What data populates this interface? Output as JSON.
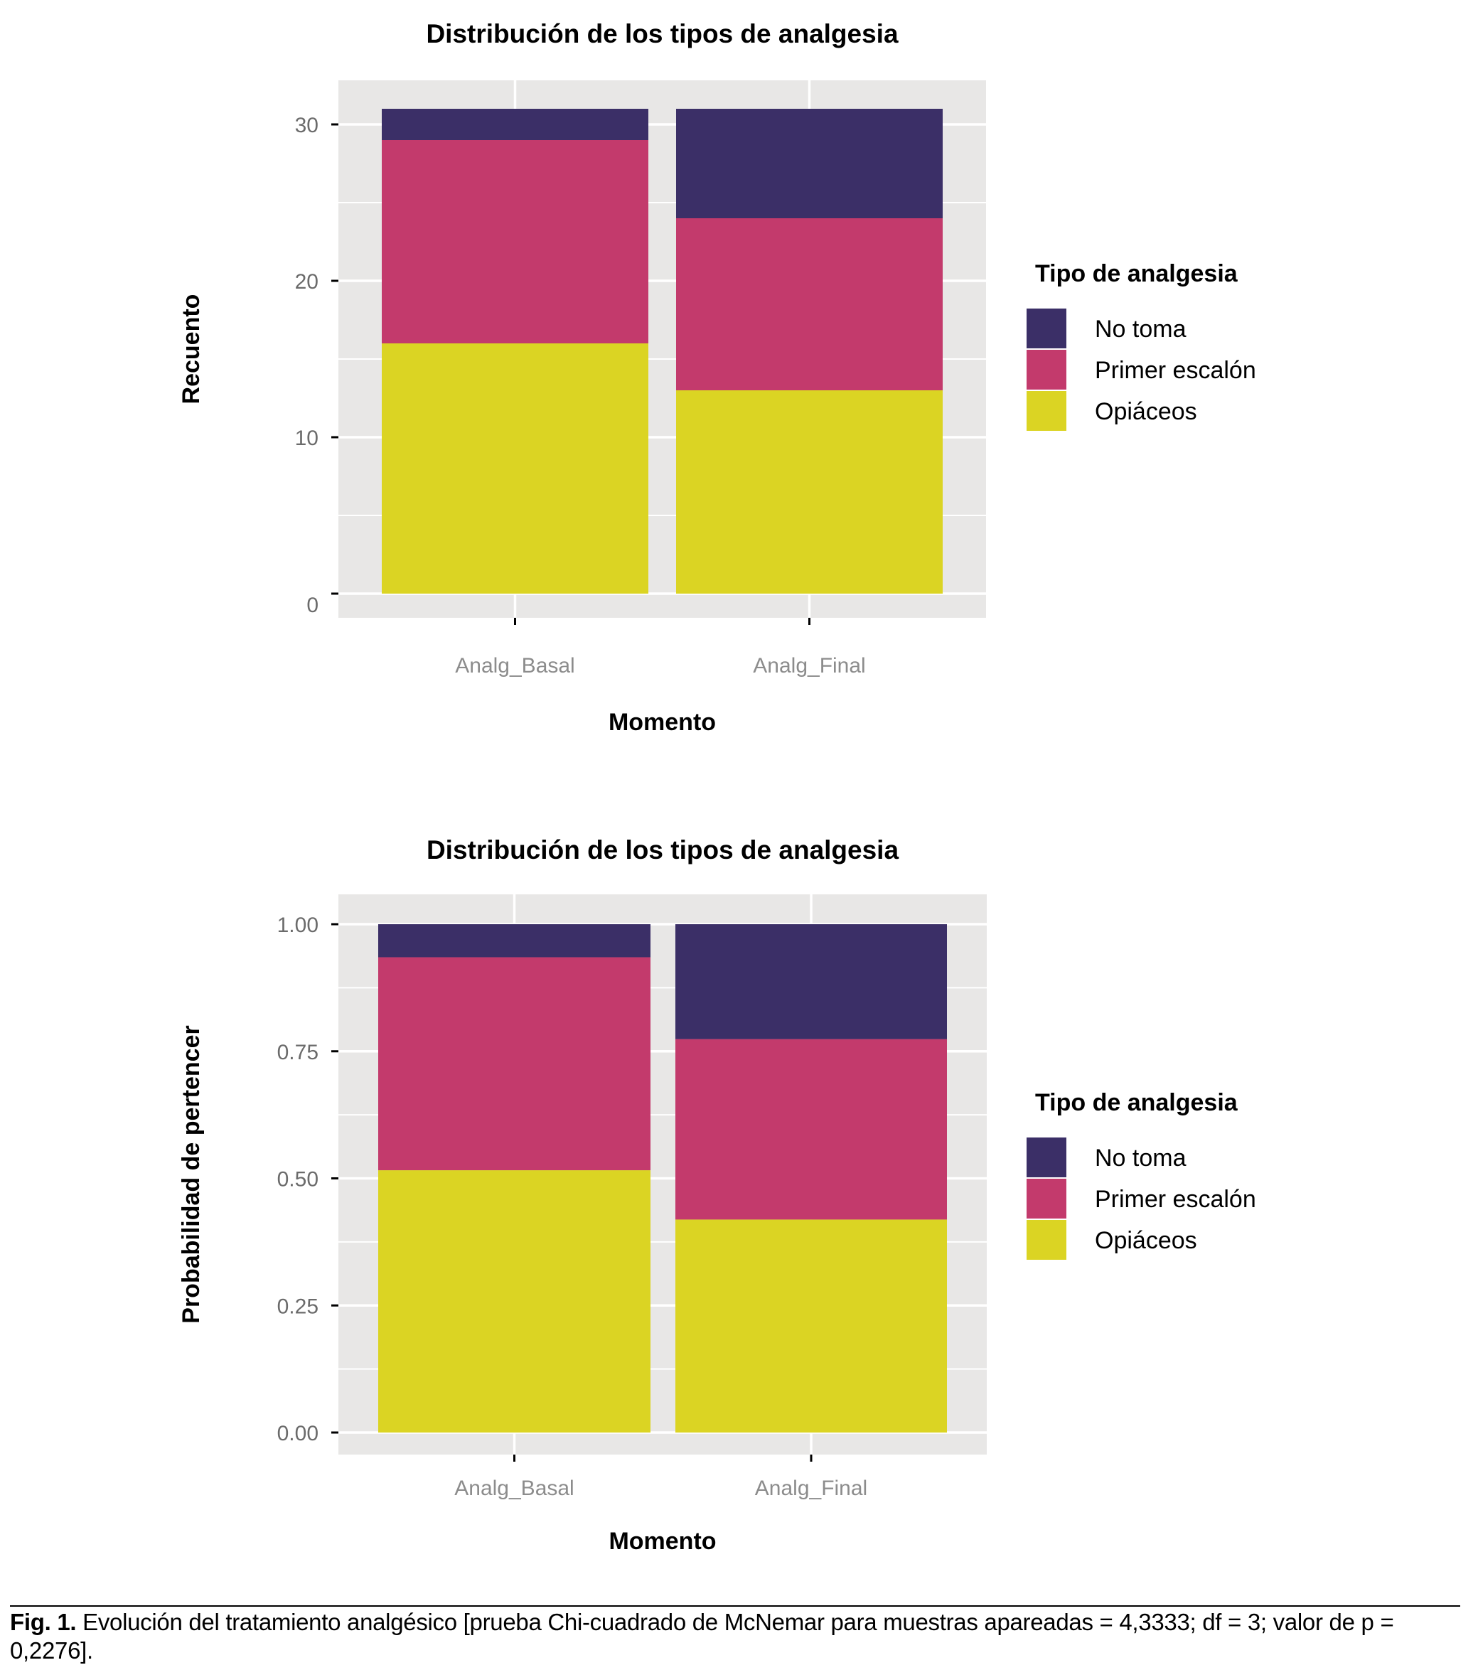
{
  "colors": {
    "No toma": "#3b2f67",
    "Primer escalón": "#c33a6c",
    "Opiáceos": "#dbd423",
    "panel": "#e8e7e6",
    "grid": "#ffffff"
  },
  "chart_data": [
    {
      "type": "bar",
      "stacked": true,
      "title": "Distribución de los tipos de analgesia",
      "xlabel": "Momento",
      "ylabel": "Recuento",
      "categories": [
        "Analg_Basal",
        "Analg_Final"
      ],
      "series": [
        {
          "name": "Opiáceos",
          "values": [
            16,
            13
          ]
        },
        {
          "name": "Primer escalón",
          "values": [
            13,
            11
          ]
        },
        {
          "name": "No toma",
          "values": [
            2,
            7
          ]
        }
      ],
      "yticks": [
        "0",
        "10",
        "20",
        "30"
      ],
      "ytick_values": [
        0,
        10,
        20,
        30
      ],
      "ylim": [
        -1.5,
        32.5
      ],
      "grid": true,
      "legend": {
        "title": "Tipo de analgesia",
        "entries": [
          "No toma",
          "Primer escalón",
          "Opiáceos"
        ],
        "placement": "right"
      }
    },
    {
      "type": "bar",
      "stacked": true,
      "title": "Distribución de los tipos de analgesia",
      "xlabel": "Momento",
      "ylabel": "Probabilidad de pertencer",
      "categories": [
        "Analg_Basal",
        "Analg_Final"
      ],
      "series": [
        {
          "name": "Opiáceos",
          "values": [
            0.516,
            0.419
          ]
        },
        {
          "name": "Primer escalón",
          "values": [
            0.419,
            0.355
          ]
        },
        {
          "name": "No toma",
          "values": [
            0.065,
            0.226
          ]
        }
      ],
      "yticks": [
        "0.00",
        "0.25",
        "0.50",
        "0.75",
        "1.00"
      ],
      "ytick_values": [
        0,
        0.25,
        0.5,
        0.75,
        1.0
      ],
      "ylim": [
        -0.05,
        1.05
      ],
      "grid": true,
      "legend": {
        "title": "Tipo de analgesia",
        "entries": [
          "No toma",
          "Primer escalón",
          "Opiáceos"
        ],
        "placement": "right"
      }
    }
  ],
  "caption": {
    "label": "Fig. 1.",
    "text": " Evolución del tratamiento analgésico [prueba Chi-cuadrado de McNemar para muestras apareadas = 4,3333; df = 3; valor de p = 0,2276]."
  }
}
